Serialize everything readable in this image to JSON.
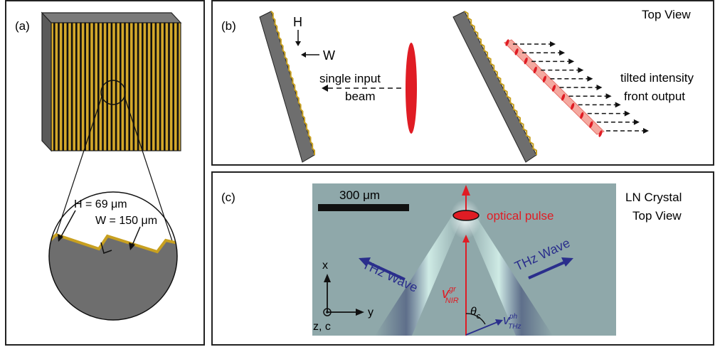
{
  "panel_a": {
    "label": "(a)",
    "height_label": "H = 69 μm",
    "width_label": "W = 150 μm"
  },
  "panel_b": {
    "label": "(b)",
    "view_label": "Top View",
    "height_marker": "H",
    "width_marker": "W",
    "input_label_line1": "single input",
    "input_label_line2": "beam",
    "output_label_line1": "tilted intensity",
    "output_label_line2": "front output"
  },
  "panel_c": {
    "label": "(c)",
    "scale_label": "300 μm",
    "pulse_label": "optical pulse",
    "crystal_label_line1": "LN Crystal",
    "crystal_label_line2": "Top View",
    "thz_left_label": "THz Wave",
    "thz_right_label": "THz Wave",
    "axis_x": "x",
    "axis_y": "y",
    "axis_z": "z, c",
    "v_nir_main": "v",
    "v_nir_sup": "gr",
    "v_nir_sub": "NIR",
    "v_thz_main": "v",
    "v_thz_sup": "ph",
    "v_thz_sub": "THz",
    "theta_main": "θ",
    "theta_sub": "c"
  },
  "colors": {
    "gold": "#c8a020",
    "gray": "#6e6e6e",
    "red": "#e01c24",
    "navy": "#2a2e8c",
    "crystal": "#8fa8aa"
  }
}
